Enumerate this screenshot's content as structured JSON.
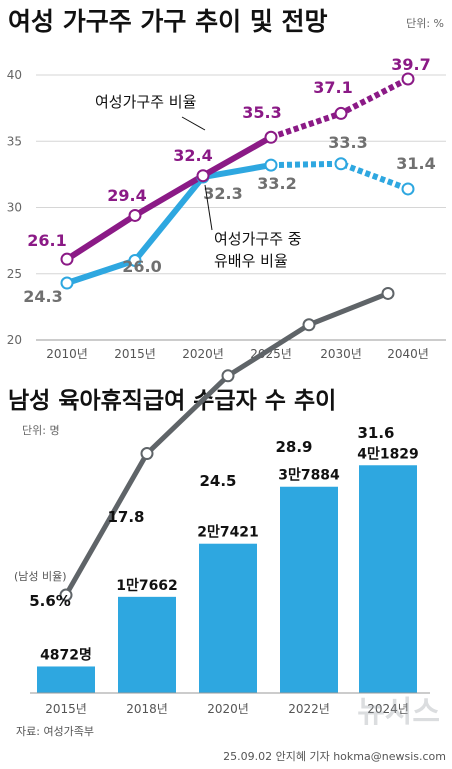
{
  "chart_data": [
    {
      "type": "line",
      "title": "여성 가구주 가구 추이 및 전망",
      "unit_label": "단위: %",
      "x": [
        "2010년",
        "2015년",
        "2020년",
        "2025년",
        "2030년",
        "2040년"
      ],
      "ylim": [
        20,
        40
      ],
      "yticks": [
        20,
        25,
        30,
        35,
        40
      ],
      "grid": true,
      "series": [
        {
          "name": "여성가구주 비율",
          "values": [
            26.1,
            29.4,
            32.4,
            35.3,
            37.1,
            39.7
          ],
          "labels": [
            "26.1",
            "29.4",
            "32.4",
            "35.3",
            "37.1",
            "39.7"
          ],
          "color": "#8b1a86",
          "label_color": "#8b1a86",
          "projected_from_index": 3
        },
        {
          "name": "여성가구주 중 유배우 비율",
          "name_lines": [
            "여성가구주 중",
            "유배우 비율"
          ],
          "values": [
            24.3,
            26.0,
            32.3,
            33.2,
            33.3,
            31.4
          ],
          "labels": [
            "24.3",
            "26.0",
            "32.3",
            "33.2",
            "33.3",
            "31.4"
          ],
          "color": "#2ea7e0",
          "label_color": "#707070",
          "projected_from_index": 3
        }
      ]
    },
    {
      "type": "bar",
      "title": "남성 육아휴직급여 수급자 수 추이",
      "unit_label": "단위: 명",
      "categories": [
        "2015년",
        "2018년",
        "2020년",
        "2022년",
        "2024년"
      ],
      "values": [
        4872,
        17662,
        27421,
        37884,
        41829
      ],
      "labels": [
        "4872명",
        "1만7662",
        "2만7421",
        "3만7884",
        "4만1829"
      ],
      "bar_color": "#2ea7e0",
      "ylim": [
        0,
        45000
      ],
      "line_series": {
        "name": "(남성 비율)",
        "values": [
          5.6,
          17.8,
          24.5,
          28.9,
          31.6
        ],
        "labels": [
          "5.6%",
          "17.8",
          "24.5",
          "28.9",
          "31.6"
        ],
        "color": "#5f6468"
      }
    }
  ],
  "source": "자료: 여성가족부",
  "credit": "25.09.02 안지혜 기자 hokma@newsis.com",
  "watermark": "뉴시스"
}
